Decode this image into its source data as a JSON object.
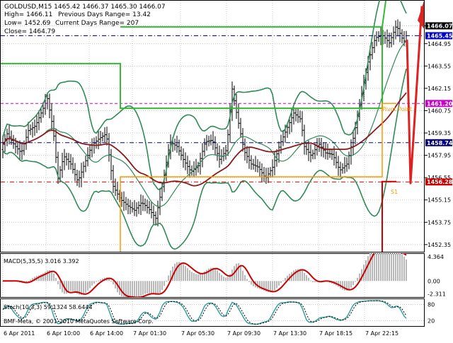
{
  "chart_data": {
    "type": "ohlc",
    "info": {
      "line1": "GOLDUSD,M15   1465.42 1466.37 1465.30 1466.07",
      "high": "High= 1466.11",
      "low": "Low= 1452.69",
      "close": "Close= 1464.79",
      "prev_range": "Previous Days Range= 13.42",
      "curr_range": "Current Days Range= 207"
    },
    "price_axis": {
      "ticks": [
        "1466.07",
        "1464.95",
        "1463.55",
        "1462.15",
        "1460.75",
        "1459.35",
        "1457.95",
        "1456.55",
        "1455.15",
        "1453.75",
        "1452.35"
      ],
      "range": [
        1451.9,
        1467.6
      ]
    },
    "price_labels": [
      {
        "text": "1466.07",
        "value": 1466.07,
        "color": "#000000"
      },
      {
        "text": "1465.45",
        "value": 1465.45,
        "color": "#0000cc"
      },
      {
        "text": "1461.20",
        "value": 1461.2,
        "color": "#cc00cc"
      },
      {
        "text": "1458.74",
        "value": 1458.74,
        "color": "#000080"
      },
      {
        "text": "1456.28",
        "value": 1456.28,
        "color": "#cc0000"
      }
    ],
    "annotations": {
      "pivot_label": "Pivot Point",
      "s1_label": "S1"
    },
    "macd": {
      "label": "MACD(5,35,5) 3.016 3.392",
      "ticks": [
        "4.364",
        "0.00",
        "-2.311"
      ],
      "range": [
        -2.9,
        4.9
      ]
    },
    "stoch": {
      "label": "Stoch(10,3,3) 59.1324 58.6444",
      "ticks": [
        "80",
        "20"
      ],
      "range": [
        0,
        100
      ]
    },
    "copyright": "BMF-Meta, © 2001-2010 MetaQuotes Software Corp.",
    "x_ticks": [
      "6 Apr 2011",
      "6 Apr 10:00",
      "6 Apr 14:00",
      "7 Apr 01:30",
      "7 Apr 05:30",
      "7 Apr 09:30",
      "7 Apr 13:30",
      "7 Apr 18:15",
      "7 Apr 22:15"
    ],
    "colors": {
      "bars": "#000000",
      "bollinger": "#2e8b57",
      "moving_average": "#8b1a1a",
      "prev_day_box": "#33bb33",
      "curr_day_box": "#ff9900",
      "macd_hist": "#b8b8b8",
      "macd_signal": "#cc0000",
      "stoch_main": "#2a9d9d",
      "stoch_signal": "#000000",
      "arrow": "#dd2222"
    }
  }
}
